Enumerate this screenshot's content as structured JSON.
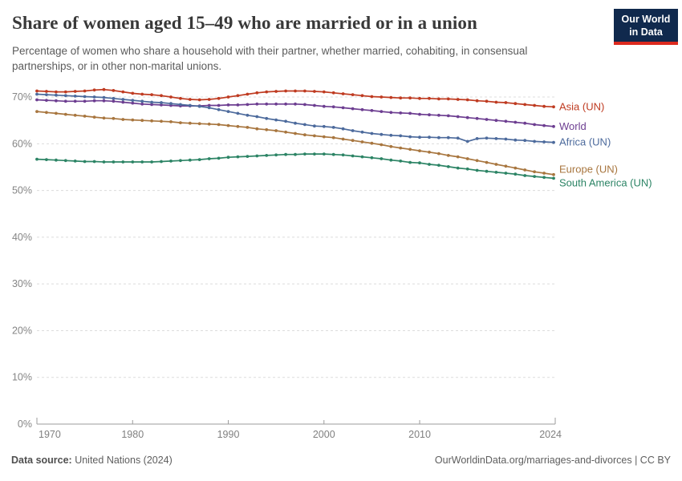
{
  "header": {
    "title": "Share of women aged 15–49 who are married or in a union",
    "subtitle": "Percentage of women who share a household with their partner, whether married, cohabiting, in consensual partnerships, or in other non-marital unions."
  },
  "logo": {
    "line1": "Our World",
    "line2": "in Data",
    "navy": "#10294d",
    "red": "#dc2a1e"
  },
  "chart_data": {
    "type": "line",
    "title": "Share of women aged 15–49 who are married or in a union",
    "xlabel": "",
    "ylabel": "",
    "x_range": [
      1970,
      2024
    ],
    "ylim": [
      0,
      73
    ],
    "grid": true,
    "legend_position": "right-end-labels",
    "x_label_ticks": [
      1970,
      1980,
      1990,
      2000,
      2010,
      2024
    ],
    "y_ticks": [
      0,
      10,
      20,
      30,
      40,
      50,
      60,
      70
    ],
    "y_tick_suffix": "%",
    "years": [
      1970,
      1971,
      1972,
      1973,
      1974,
      1975,
      1976,
      1977,
      1978,
      1979,
      1980,
      1981,
      1982,
      1983,
      1984,
      1985,
      1986,
      1987,
      1988,
      1989,
      1990,
      1991,
      1992,
      1993,
      1994,
      1995,
      1996,
      1997,
      1998,
      1999,
      2000,
      2001,
      2002,
      2003,
      2004,
      2005,
      2006,
      2007,
      2008,
      2009,
      2010,
      2011,
      2012,
      2013,
      2014,
      2015,
      2016,
      2017,
      2018,
      2019,
      2020,
      2021,
      2022,
      2023,
      2024
    ],
    "series": [
      {
        "name": "Asia (UN)",
        "color": "#bf3b21",
        "values": [
          71.3,
          71.2,
          71.1,
          71.1,
          71.2,
          71.3,
          71.5,
          71.6,
          71.4,
          71.1,
          70.8,
          70.6,
          70.5,
          70.3,
          70.0,
          69.7,
          69.5,
          69.4,
          69.5,
          69.7,
          70.0,
          70.3,
          70.6,
          70.9,
          71.1,
          71.2,
          71.3,
          71.3,
          71.3,
          71.2,
          71.1,
          70.9,
          70.7,
          70.5,
          70.3,
          70.1,
          70.0,
          69.9,
          69.8,
          69.8,
          69.7,
          69.7,
          69.6,
          69.6,
          69.5,
          69.4,
          69.2,
          69.1,
          68.9,
          68.8,
          68.6,
          68.4,
          68.2,
          68.0,
          67.9
        ]
      },
      {
        "name": "World",
        "color": "#6d3e91",
        "values": [
          69.4,
          69.3,
          69.2,
          69.1,
          69.1,
          69.1,
          69.2,
          69.2,
          69.1,
          68.9,
          68.7,
          68.5,
          68.4,
          68.3,
          68.2,
          68.1,
          68.1,
          68.1,
          68.2,
          68.2,
          68.3,
          68.3,
          68.4,
          68.5,
          68.5,
          68.5,
          68.5,
          68.5,
          68.4,
          68.2,
          68.0,
          67.9,
          67.7,
          67.5,
          67.3,
          67.1,
          66.9,
          66.7,
          66.6,
          66.5,
          66.3,
          66.2,
          66.1,
          66.0,
          65.8,
          65.6,
          65.4,
          65.2,
          65.0,
          64.8,
          64.6,
          64.4,
          64.1,
          63.9,
          63.7
        ]
      },
      {
        "name": "Africa (UN)",
        "color": "#4c6a9c",
        "values": [
          70.6,
          70.5,
          70.4,
          70.3,
          70.2,
          70.1,
          70.0,
          69.9,
          69.7,
          69.5,
          69.3,
          69.1,
          68.9,
          68.8,
          68.6,
          68.4,
          68.2,
          68.0,
          67.7,
          67.3,
          66.9,
          66.5,
          66.1,
          65.8,
          65.4,
          65.1,
          64.8,
          64.4,
          64.1,
          63.8,
          63.7,
          63.5,
          63.2,
          62.8,
          62.5,
          62.2,
          62.0,
          61.8,
          61.7,
          61.5,
          61.4,
          61.4,
          61.3,
          61.3,
          61.2,
          60.5,
          61.1,
          61.2,
          61.1,
          61.0,
          60.8,
          60.7,
          60.5,
          60.4,
          60.3
        ]
      },
      {
        "name": "Europe (UN)",
        "color": "#a8763f",
        "values": [
          66.9,
          66.7,
          66.5,
          66.3,
          66.1,
          65.9,
          65.7,
          65.5,
          65.4,
          65.2,
          65.1,
          65.0,
          64.9,
          64.8,
          64.7,
          64.5,
          64.4,
          64.3,
          64.2,
          64.1,
          63.9,
          63.7,
          63.5,
          63.2,
          63.0,
          62.8,
          62.5,
          62.2,
          61.9,
          61.7,
          61.5,
          61.3,
          61.0,
          60.7,
          60.4,
          60.1,
          59.8,
          59.4,
          59.1,
          58.8,
          58.5,
          58.2,
          57.9,
          57.5,
          57.2,
          56.8,
          56.4,
          56.0,
          55.6,
          55.2,
          54.8,
          54.4,
          54.0,
          53.7,
          53.4
        ]
      },
      {
        "name": "South America (UN)",
        "color": "#2c8465",
        "values": [
          56.7,
          56.6,
          56.5,
          56.4,
          56.3,
          56.2,
          56.2,
          56.1,
          56.1,
          56.1,
          56.1,
          56.1,
          56.1,
          56.2,
          56.3,
          56.4,
          56.5,
          56.6,
          56.8,
          56.9,
          57.1,
          57.2,
          57.3,
          57.4,
          57.5,
          57.6,
          57.7,
          57.7,
          57.8,
          57.8,
          57.8,
          57.7,
          57.6,
          57.4,
          57.2,
          57.0,
          56.8,
          56.5,
          56.3,
          56.0,
          55.9,
          55.6,
          55.4,
          55.1,
          54.8,
          54.6,
          54.3,
          54.1,
          53.9,
          53.7,
          53.5,
          53.2,
          53.0,
          52.8,
          52.6
        ]
      }
    ]
  },
  "footer": {
    "source_label": "Data source:",
    "source_value": " United Nations (2024)",
    "credit": "OurWorldinData.org/marriages-and-divorces | CC BY"
  }
}
